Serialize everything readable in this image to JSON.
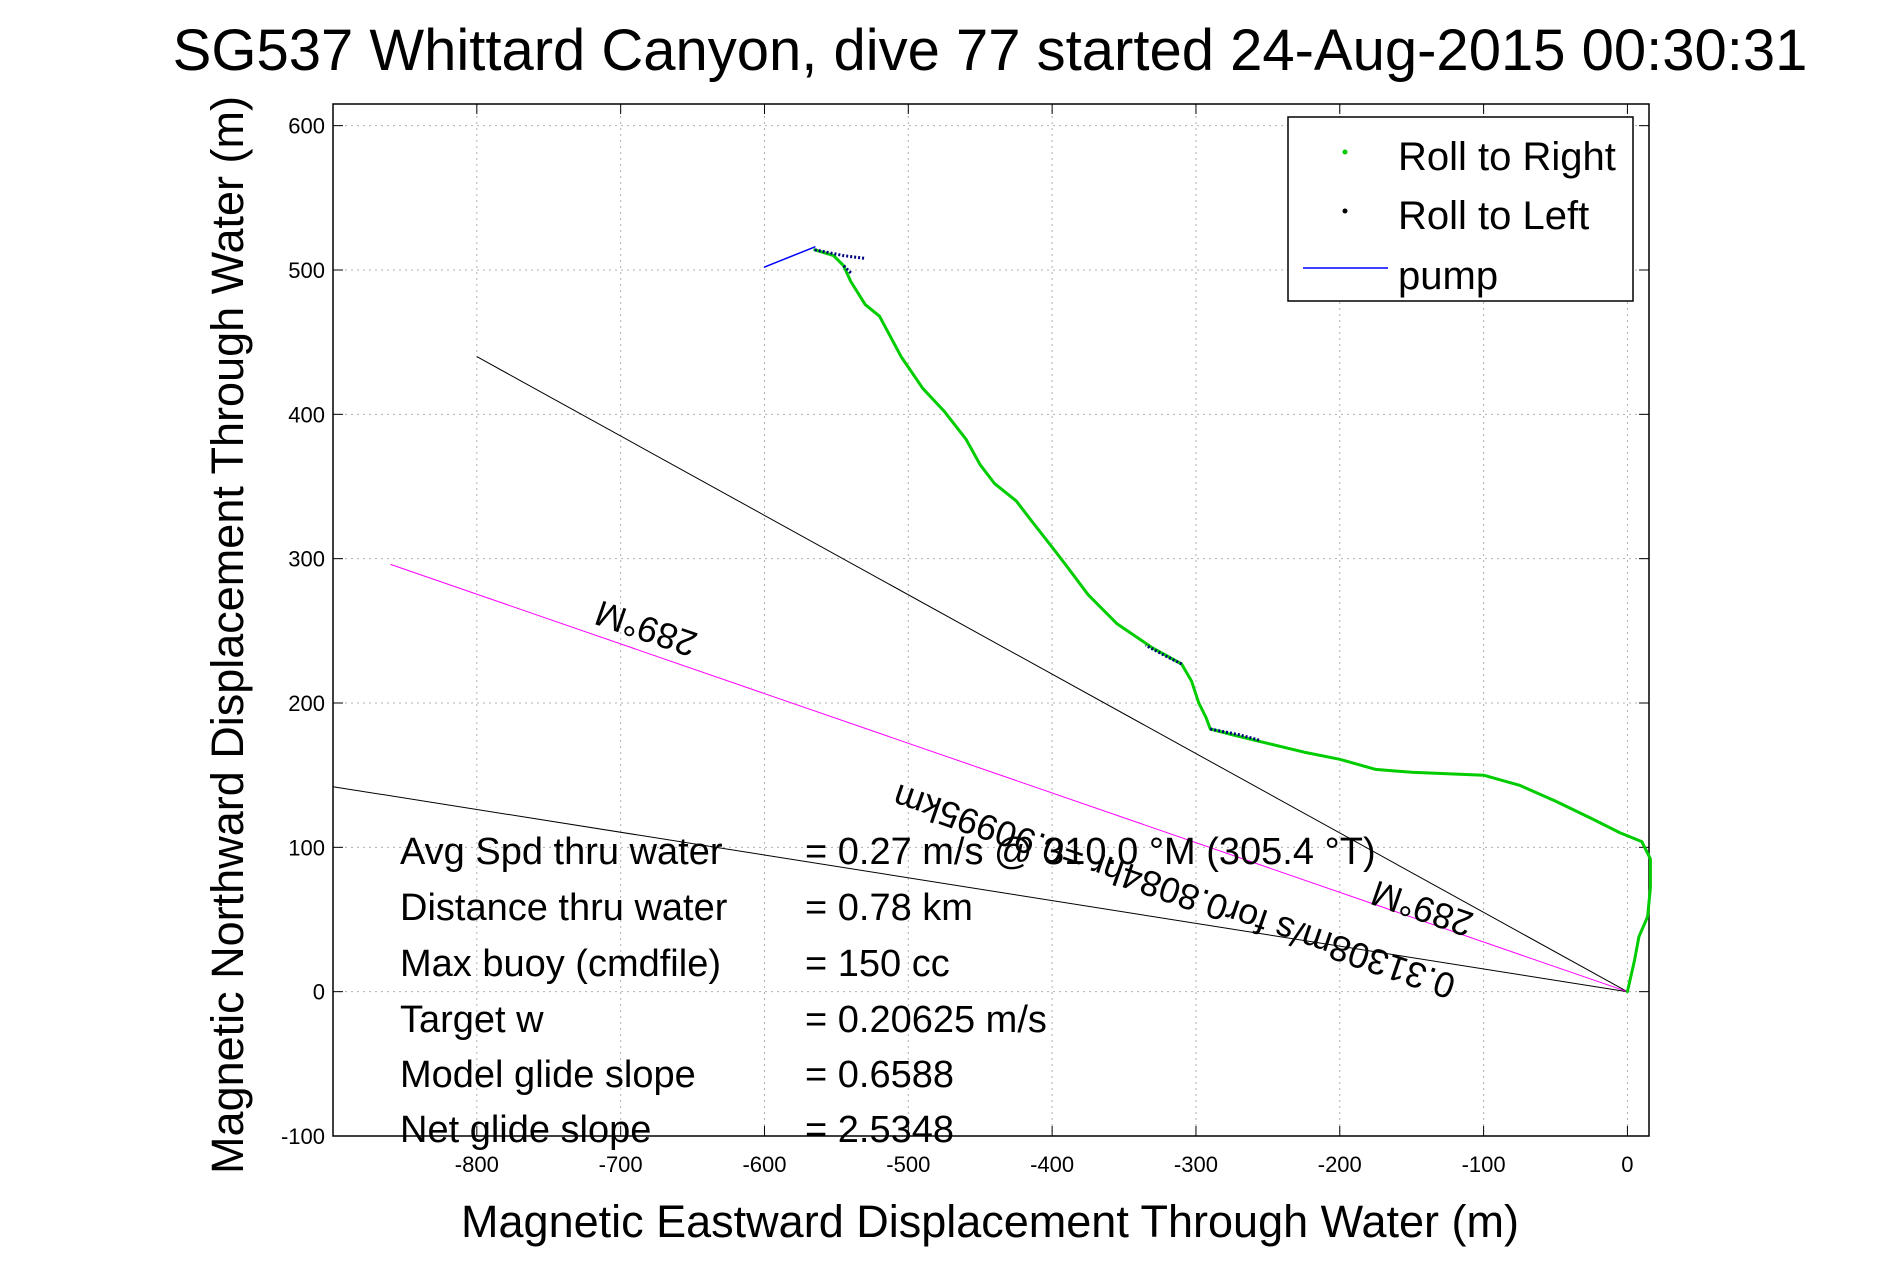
{
  "chart_data": {
    "type": "line",
    "title": "SG537 Whittard Canyon, dive 77 started 24-Aug-2015 00:30:31",
    "xlabel": "Magnetic Eastward Displacement Through Water (m)",
    "ylabel": "Magnetic Northward Displacement Through Water (m)",
    "xlim": [
      -900,
      15
    ],
    "ylim": [
      -100,
      615
    ],
    "xticks": [
      -800,
      -700,
      -600,
      -500,
      -400,
      -300,
      -200,
      -100,
      0
    ],
    "yticks": [
      -100,
      0,
      100,
      200,
      300,
      400,
      500,
      600
    ],
    "grid": true,
    "legend_position": "top-right",
    "legend": [
      {
        "label": "Roll to Right",
        "color": "#00cc00",
        "marker": "dot"
      },
      {
        "label": "Roll to Left",
        "color": "#000000",
        "marker": "dot"
      },
      {
        "label": "pump",
        "color": "#0000ff",
        "marker": "line"
      }
    ],
    "series": [
      {
        "name": "Roll to Right",
        "color": "#00cc00",
        "points": [
          [
            0,
            0
          ],
          [
            5,
            22
          ],
          [
            8,
            38
          ],
          [
            14,
            52
          ],
          [
            16,
            72
          ],
          [
            16,
            92
          ],
          [
            10,
            104
          ],
          [
            -5,
            110
          ],
          [
            -25,
            120
          ],
          [
            -50,
            132
          ],
          [
            -75,
            143
          ],
          [
            -100,
            150
          ],
          [
            -125,
            151
          ],
          [
            -150,
            152
          ],
          [
            -175,
            154
          ],
          [
            -200,
            161
          ],
          [
            -225,
            166
          ],
          [
            -250,
            172
          ],
          [
            -275,
            178
          ],
          [
            -290,
            182
          ],
          [
            -293,
            190
          ],
          [
            -298,
            200
          ],
          [
            -303,
            215
          ],
          [
            -310,
            227
          ],
          [
            -330,
            238
          ],
          [
            -355,
            255
          ],
          [
            -375,
            275
          ],
          [
            -390,
            295
          ],
          [
            -400,
            308
          ],
          [
            -415,
            327
          ],
          [
            -425,
            340
          ],
          [
            -440,
            352
          ],
          [
            -450,
            365
          ],
          [
            -460,
            383
          ],
          [
            -475,
            402
          ],
          [
            -490,
            418
          ],
          [
            -505,
            440
          ],
          [
            -520,
            468
          ],
          [
            -530,
            476
          ],
          [
            -540,
            492
          ],
          [
            -545,
            503
          ],
          [
            -552,
            510
          ],
          [
            -565,
            514
          ]
        ]
      },
      {
        "name": "Roll to Left",
        "color": "#000080",
        "segments": [
          [
            [
              -565,
              514
            ],
            [
              -545,
              510
            ],
            [
              -530,
              508
            ]
          ],
          [
            [
              -540,
              498
            ],
            [
              -545,
              503
            ]
          ],
          [
            [
              -310,
              227
            ],
            [
              -320,
              232
            ],
            [
              -335,
              240
            ]
          ],
          [
            [
              -290,
              182
            ],
            [
              -270,
              178
            ],
            [
              -255,
              174
            ]
          ]
        ]
      },
      {
        "name": "pump",
        "color": "#0000ff",
        "points": [
          [
            -600,
            502
          ],
          [
            -565,
            516
          ]
        ]
      }
    ],
    "reference_lines": [
      {
        "color": "#000000",
        "points": [
          [
            0,
            0
          ],
          [
            -800,
            440
          ]
        ]
      },
      {
        "color": "#000000",
        "points": [
          [
            0,
            0
          ],
          [
            -900,
            142
          ]
        ]
      },
      {
        "color": "#ff00ff",
        "points": [
          [
            0,
            0
          ],
          [
            -860,
            296
          ]
        ]
      }
    ],
    "annotations": {
      "heading_upper": "289°M",
      "heading_lower": "289°M",
      "current": "0.31308m/s for0.8084hr =0.90995km"
    },
    "stats": [
      {
        "label": "Avg Spd thru water",
        "value": "=  0.27 m/s @ 310.0 °M (305.4 °T)"
      },
      {
        "label": "Distance thru water",
        "value": "=  0.78 km"
      },
      {
        "label": "Max buoy (cmdfile)",
        "value": "= 150 cc"
      },
      {
        "label": "Target w",
        "value": "= 0.20625 m/s"
      },
      {
        "label": "Model glide slope",
        "value": "= 0.6588"
      },
      {
        "label": "Net glide slope",
        "value": "= 2.5348"
      }
    ]
  }
}
